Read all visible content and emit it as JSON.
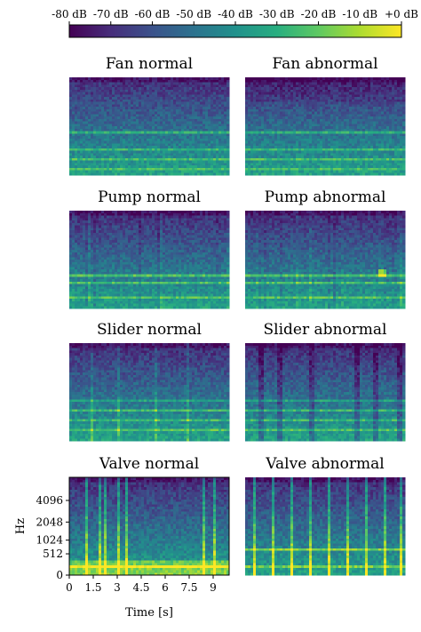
{
  "chart_data": {
    "type": "heatmap",
    "colorbar": {
      "colormap": "viridis",
      "range_db": [
        -80,
        0
      ],
      "tick_labels": [
        "-80 dB",
        "-70 dB",
        "-60 dB",
        "-50 dB",
        "-40 dB",
        "-30 dB",
        "-20 dB",
        "-10 dB",
        "+0 dB"
      ],
      "colors": [
        "#440154",
        "#472d7b",
        "#3b528b",
        "#2c728e",
        "#21918c",
        "#28ae80",
        "#5ec962",
        "#addc30",
        "#fde725"
      ]
    },
    "panels": [
      {
        "title": "Fan normal",
        "machine": "fan",
        "condition": "normal"
      },
      {
        "title": "Fan abnormal",
        "machine": "fan",
        "condition": "abnormal"
      },
      {
        "title": "Pump normal",
        "machine": "pump",
        "condition": "normal"
      },
      {
        "title": "Pump abnormal",
        "machine": "pump",
        "condition": "abnormal"
      },
      {
        "title": "Slider normal",
        "machine": "slider",
        "condition": "normal"
      },
      {
        "title": "Slider abnormal",
        "machine": "slider",
        "condition": "abnormal"
      },
      {
        "title": "Valve normal",
        "machine": "valve",
        "condition": "normal"
      },
      {
        "title": "Valve abnormal",
        "machine": "valve",
        "condition": "abnormal"
      }
    ],
    "x_axis": {
      "label": "Time [s]",
      "range": [
        0,
        10
      ],
      "ticks": [
        0,
        1.5,
        3,
        4.5,
        6,
        7.5,
        9
      ],
      "tick_labels": [
        "0",
        "1.5",
        "3",
        "4.5",
        "6",
        "7.5",
        "9"
      ]
    },
    "y_axis": {
      "label": "Hz",
      "scale": "mel",
      "range_hz": [
        0,
        8000
      ],
      "ticks": [
        0,
        512,
        1024,
        2048,
        4096
      ],
      "tick_labels": [
        "0",
        "512",
        "1024",
        "2048",
        "4096"
      ]
    }
  }
}
